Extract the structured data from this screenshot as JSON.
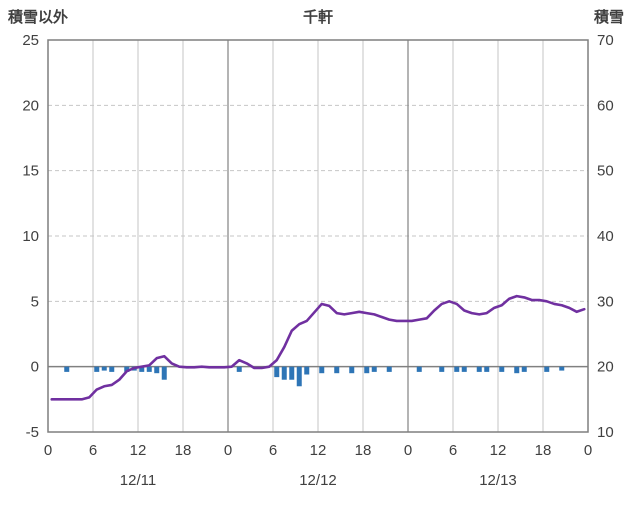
{
  "chart_data": {
    "type": "line+bar",
    "title": "千軒",
    "left_axis": {
      "label": "積雪以外",
      "min": -5,
      "max": 25,
      "ticks": [
        25,
        20,
        15,
        10,
        5,
        0,
        -5
      ]
    },
    "right_axis": {
      "label": "積雪",
      "min": 10,
      "max": 70,
      "ticks": [
        70,
        60,
        50,
        40,
        30,
        20,
        10
      ]
    },
    "x_axis": {
      "hours_total": 72,
      "tick_hours": [
        0,
        6,
        12,
        18,
        24,
        30,
        36,
        42,
        48,
        54,
        60,
        66,
        72
      ],
      "tick_labels": [
        "0",
        "6",
        "12",
        "18",
        "0",
        "6",
        "12",
        "18",
        "0",
        "6",
        "12",
        "18",
        "0"
      ],
      "day_labels": [
        "12/11",
        "12/12",
        "12/13"
      ]
    },
    "series": [
      {
        "name": "積雪",
        "type": "line",
        "axis": "right",
        "color": "#7030A0",
        "values": [
          15,
          15,
          15,
          15,
          15,
          15.3,
          16.5,
          17,
          17.2,
          18,
          19.3,
          19.8,
          20,
          20.2,
          21.3,
          21.6,
          20.5,
          20,
          19.9,
          19.9,
          20,
          19.9,
          19.9,
          19.9,
          20,
          21,
          20.5,
          19.8,
          19.8,
          20,
          21,
          23,
          25.5,
          26.5,
          27,
          28.3,
          29.6,
          29.3,
          28.2,
          28,
          28.2,
          28.4,
          28.2,
          28,
          27.6,
          27.2,
          27,
          27,
          27,
          27.2,
          27.4,
          28.6,
          29.6,
          30,
          29.6,
          28.6,
          28.2,
          28,
          28.2,
          29,
          29.4,
          30.4,
          30.8,
          30.6,
          30.2,
          30.2,
          30,
          29.6,
          29.4,
          29,
          28.4,
          28.8
        ]
      },
      {
        "name": "積雪以外",
        "type": "bar",
        "axis": "left",
        "color": "#2E75B6",
        "values": [
          0,
          0,
          -0.4,
          0,
          0,
          0,
          -0.4,
          -0.3,
          -0.4,
          0,
          -0.4,
          -0.3,
          -0.4,
          -0.4,
          -0.5,
          -1.0,
          0,
          0,
          0,
          0,
          0,
          0,
          0,
          0,
          0,
          -0.4,
          0,
          0,
          0,
          0,
          -0.8,
          -1.0,
          -1.0,
          -1.5,
          -0.6,
          0,
          -0.5,
          0,
          -0.5,
          0,
          -0.5,
          0,
          -0.5,
          -0.4,
          0,
          -0.4,
          0,
          0,
          0,
          -0.4,
          0,
          0,
          -0.4,
          0,
          -0.4,
          -0.4,
          0,
          -0.4,
          -0.4,
          0,
          -0.4,
          0,
          -0.5,
          -0.4,
          0,
          0,
          -0.4,
          0,
          -0.3,
          0,
          0,
          0
        ]
      }
    ],
    "style": {
      "grid_color": "#C6C6C6",
      "day_boundary_color": "#8C8C8C",
      "zero_line_color": "#808080",
      "border_color": "#7F7F7F",
      "text_color": "#404040"
    },
    "layout_hints": {
      "grid": true,
      "legend": false
    }
  }
}
